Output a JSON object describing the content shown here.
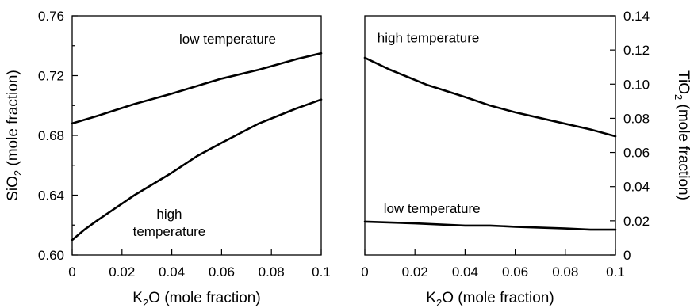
{
  "chart_data": [
    {
      "type": "line",
      "xlabel": {
        "pre": "K",
        "sub": "2",
        "post": "O (mole fraction)"
      },
      "ylabel": {
        "pre": "SiO",
        "sub": "2",
        "post": " (mole fraction)"
      },
      "xlim": [
        0,
        0.1
      ],
      "ylim": [
        0.6,
        0.76
      ],
      "xticks": [
        0,
        0.02,
        0.04,
        0.06,
        0.08,
        0.1
      ],
      "xtick_labels": [
        "0",
        "0.02",
        "0.04",
        "0.06",
        "0.08",
        "0.1"
      ],
      "yticks": [
        0.6,
        0.64,
        0.68,
        0.72,
        0.76
      ],
      "ytick_labels": [
        "0.60",
        "0.64",
        "0.68",
        "0.72",
        "0.76"
      ],
      "y_minor_ticks": [
        0.62,
        0.66,
        0.7,
        0.74
      ],
      "y_axis_side": "left",
      "grid": false,
      "series": [
        {
          "x": [
            0,
            0.01,
            0.025,
            0.04,
            0.05,
            0.06,
            0.075,
            0.09,
            0.1
          ],
          "y": [
            0.688,
            0.693,
            0.701,
            0.708,
            0.713,
            0.718,
            0.724,
            0.731,
            0.735
          ]
        },
        {
          "x": [
            0,
            0.005,
            0.01,
            0.025,
            0.04,
            0.05,
            0.06,
            0.075,
            0.09,
            0.1
          ],
          "y": [
            0.61,
            0.617,
            0.623,
            0.64,
            0.655,
            0.666,
            0.675,
            0.688,
            0.698,
            0.704
          ]
        }
      ],
      "annotations": [
        {
          "lines": [
            "low temperature"
          ],
          "x": 0.043,
          "y": 0.7415,
          "anchor": "start"
        },
        {
          "lines": [
            "high",
            "temperature"
          ],
          "x": 0.039,
          "y": 0.6245,
          "anchor": "middle"
        }
      ]
    },
    {
      "type": "line",
      "xlabel": {
        "pre": "K",
        "sub": "2",
        "post": "O (mole fraction)"
      },
      "ylabel": {
        "pre": "TiO",
        "sub": "2",
        "post": " (mole fraction)"
      },
      "xlim": [
        0,
        0.1
      ],
      "ylim": [
        0,
        0.14
      ],
      "xticks": [
        0,
        0.02,
        0.04,
        0.06,
        0.08,
        0.1
      ],
      "xtick_labels": [
        "0",
        "0.02",
        "0.04",
        "0.06",
        "0.08",
        "0.1"
      ],
      "yticks": [
        0,
        0.02,
        0.04,
        0.06,
        0.08,
        0.1,
        0.12,
        0.14
      ],
      "ytick_labels": [
        "0",
        "0.02",
        "0.04",
        "0.06",
        "0.08",
        "0.10",
        "0.12",
        "0.14"
      ],
      "y_minor_ticks": [],
      "y_axis_side": "right",
      "grid": false,
      "series": [
        {
          "x": [
            0,
            0.01,
            0.025,
            0.04,
            0.05,
            0.06,
            0.075,
            0.09,
            0.1
          ],
          "y": [
            0.1155,
            0.1085,
            0.0995,
            0.0925,
            0.0875,
            0.0835,
            0.0785,
            0.0735,
            0.0695
          ]
        },
        {
          "x": [
            0,
            0.02,
            0.04,
            0.05,
            0.06,
            0.08,
            0.09,
            0.1
          ],
          "y": [
            0.0195,
            0.0185,
            0.0172,
            0.0172,
            0.0165,
            0.0155,
            0.0148,
            0.0148
          ]
        }
      ],
      "annotations": [
        {
          "lines": [
            "high temperature"
          ],
          "x": 0.005,
          "y": 0.1245,
          "anchor": "start"
        },
        {
          "lines": [
            "low temperature"
          ],
          "x": 0.0075,
          "y": 0.0245,
          "anchor": "start"
        }
      ]
    }
  ]
}
